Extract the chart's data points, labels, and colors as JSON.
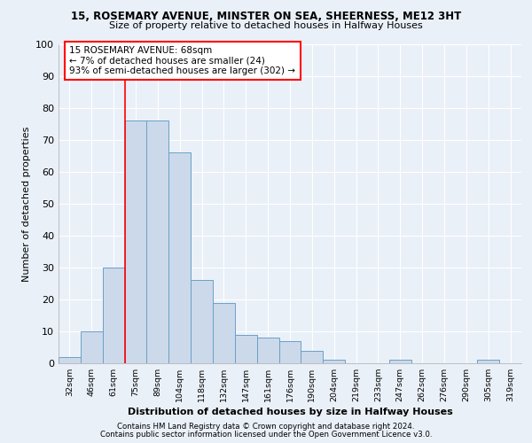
{
  "title_line1": "15, ROSEMARY AVENUE, MINSTER ON SEA, SHEERNESS, ME12 3HT",
  "title_line2": "Size of property relative to detached houses in Halfway Houses",
  "xlabel": "Distribution of detached houses by size in Halfway Houses",
  "ylabel": "Number of detached properties",
  "bar_labels": [
    "32sqm",
    "46sqm",
    "61sqm",
    "75sqm",
    "89sqm",
    "104sqm",
    "118sqm",
    "132sqm",
    "147sqm",
    "161sqm",
    "176sqm",
    "190sqm",
    "204sqm",
    "219sqm",
    "233sqm",
    "247sqm",
    "262sqm",
    "276sqm",
    "290sqm",
    "305sqm",
    "319sqm"
  ],
  "bar_values": [
    2,
    10,
    30,
    76,
    76,
    66,
    26,
    19,
    9,
    8,
    7,
    4,
    1,
    0,
    0,
    1,
    0,
    0,
    0,
    1,
    0
  ],
  "bar_color": "#ccd9ea",
  "bar_edge_color": "#6aa0c7",
  "red_line_x": 2.5,
  "annotation_line1": "15 ROSEMARY AVENUE: 68sqm",
  "annotation_line2": "← 7% of detached houses are smaller (24)",
  "annotation_line3": "93% of semi-detached houses are larger (302) →",
  "ylim": [
    0,
    100
  ],
  "yticks": [
    0,
    10,
    20,
    30,
    40,
    50,
    60,
    70,
    80,
    90,
    100
  ],
  "footnote1": "Contains HM Land Registry data © Crown copyright and database right 2024.",
  "footnote2": "Contains public sector information licensed under the Open Government Licence v3.0.",
  "bg_color": "#eaf0f8",
  "grid_color": "#ffffff"
}
